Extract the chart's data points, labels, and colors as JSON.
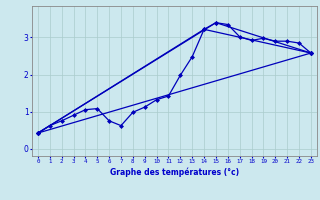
{
  "background_color": "#cce8ee",
  "plot_bg_color": "#cce8ee",
  "grid_color": "#aacccc",
  "line_color": "#0000bb",
  "marker_color": "#0000bb",
  "xlabel": "Graphe des températures (°c)",
  "xlabel_color": "#0000cc",
  "tick_color": "#0000cc",
  "xlim": [
    -0.5,
    23.5
  ],
  "ylim": [
    -0.2,
    3.85
  ],
  "yticks": [
    0,
    1,
    2,
    3
  ],
  "xticks": [
    0,
    1,
    2,
    3,
    4,
    5,
    6,
    7,
    8,
    9,
    10,
    11,
    12,
    13,
    14,
    15,
    16,
    17,
    18,
    19,
    20,
    21,
    22,
    23
  ],
  "line1_x": [
    0,
    1,
    2,
    3,
    4,
    5,
    6,
    7,
    8,
    9,
    10,
    11,
    12,
    13,
    14,
    15,
    16,
    17,
    18,
    19,
    20,
    21,
    22,
    23
  ],
  "line1_y": [
    0.42,
    0.62,
    0.75,
    0.9,
    1.05,
    1.08,
    0.75,
    0.62,
    0.98,
    1.12,
    1.32,
    1.42,
    1.98,
    2.48,
    3.22,
    3.4,
    3.35,
    3.02,
    2.92,
    2.98,
    2.9,
    2.9,
    2.85,
    2.58
  ],
  "line3_x": [
    0,
    23
  ],
  "line3_y": [
    0.42,
    2.58
  ],
  "line4_x": [
    0,
    14,
    23
  ],
  "line4_y": [
    0.42,
    3.22,
    2.58
  ],
  "line5_x": [
    0,
    15,
    23
  ],
  "line5_y": [
    0.42,
    3.4,
    2.58
  ]
}
